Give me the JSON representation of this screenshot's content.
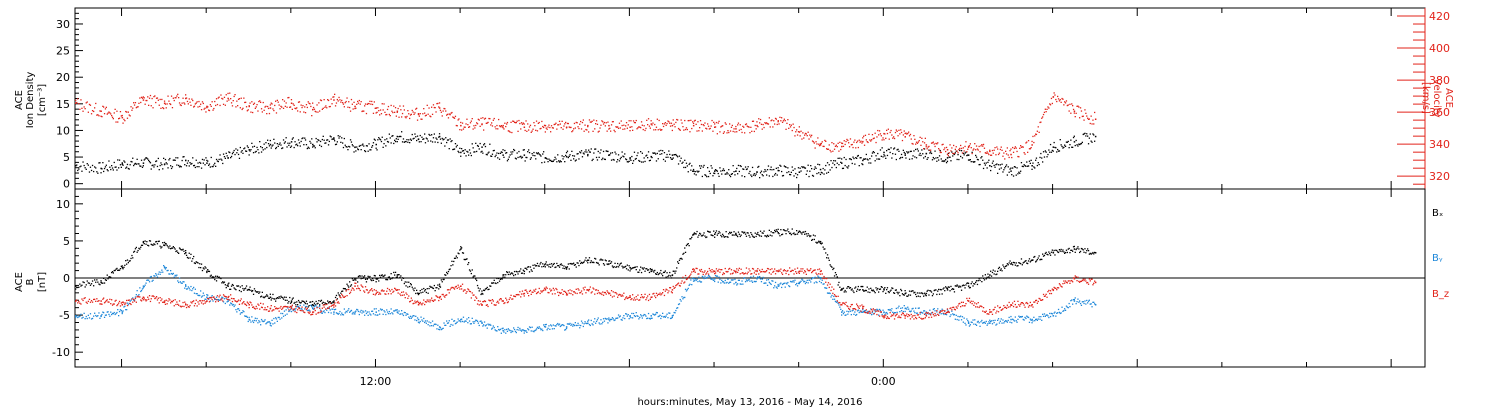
{
  "colors": {
    "black": "#000000",
    "red": "#e2231a",
    "blue": "#1f88d9"
  },
  "xlabel": "hours:minutes, May 13, 2016 - May 14, 2016",
  "x_tick_labels": [
    {
      "label": "12:00",
      "hour": 12
    },
    {
      "label": "0:00",
      "hour": 24
    }
  ],
  "chart_data": [
    {
      "type": "scatter",
      "panel": "plasma",
      "x_unit": "hours since May 13, 2016 00:00",
      "xlim": [
        4.9,
        36.8
      ],
      "left_axis": {
        "label_lines": [
          "ACE",
          "Ion Density",
          "[cm⁻³]"
        ],
        "ylim": [
          -1,
          33
        ],
        "ticks": [
          0,
          5,
          10,
          15,
          20,
          25,
          30
        ],
        "color": "#000000"
      },
      "right_axis": {
        "label_lines": [
          "ACE",
          "Velocity",
          "[km/s]"
        ],
        "ylim": [
          312,
          425
        ],
        "ticks": [
          320,
          340,
          360,
          380,
          400,
          420
        ],
        "color": "#e2231a"
      },
      "series": [
        {
          "axis": "left",
          "color": "#000000",
          "x": [
            4.9,
            5.5,
            6,
            6.5,
            7,
            7.5,
            8,
            8.5,
            9,
            9.5,
            10,
            10.5,
            11,
            11.5,
            12,
            12.5,
            13,
            13.5,
            14,
            14.5,
            15,
            15.5,
            16,
            16.5,
            17,
            17.5,
            18,
            18.5,
            19,
            19.5,
            20,
            20.5,
            21,
            21.5,
            22,
            22.5,
            23,
            23.5,
            24,
            24.5,
            25,
            25.5,
            26,
            26.5,
            27,
            27.5,
            28,
            28.5,
            29
          ],
          "y": [
            3.5,
            3,
            3.8,
            4,
            3.8,
            4.5,
            4,
            5,
            6.5,
            7.5,
            8,
            7.5,
            8.5,
            7,
            7.5,
            9,
            8.5,
            9,
            6,
            7,
            5.5,
            5.5,
            5,
            5.2,
            5.6,
            5.5,
            5,
            5.2,
            5.5,
            2.5,
            2.5,
            2.5,
            2.3,
            2.6,
            2.3,
            2.8,
            4,
            4.5,
            6,
            5.5,
            5.8,
            5,
            5.5,
            3.5,
            2.5,
            3.5,
            7,
            8,
            9
          ]
        },
        {
          "axis": "right",
          "color": "#e2231a",
          "x": [
            4.9,
            5.5,
            6,
            6.5,
            7,
            7.5,
            8,
            8.5,
            9,
            9.5,
            10,
            10.5,
            11,
            11.5,
            12,
            12.5,
            13,
            13.5,
            14,
            14.5,
            15,
            15.5,
            16,
            16.5,
            17,
            17.5,
            18,
            18.5,
            19,
            19.5,
            20,
            20.5,
            21,
            21.5,
            22,
            22.5,
            23,
            23.5,
            24,
            24.5,
            25,
            25.5,
            26,
            26.5,
            27,
            27.5,
            28,
            28.5,
            29
          ],
          "y": [
            366,
            361,
            357,
            368,
            366,
            369,
            364,
            369,
            364,
            363,
            366,
            362,
            368,
            364,
            363,
            361,
            359,
            363,
            352,
            353,
            352,
            351,
            352,
            351,
            352,
            352,
            351,
            353,
            352,
            352,
            351,
            350,
            352,
            355,
            348,
            340,
            339,
            342,
            347,
            345,
            340,
            337,
            339,
            336,
            334,
            340,
            370,
            361,
            356
          ]
        }
      ]
    },
    {
      "type": "scatter",
      "panel": "magnetic-field",
      "x_unit": "hours since May 13, 2016 00:00",
      "xlim": [
        4.9,
        36.8
      ],
      "ylabel_lines": [
        "ACE",
        "B",
        "[nT]"
      ],
      "ylim": [
        -12,
        12
      ],
      "ticks": [
        -10,
        -5,
        0,
        5,
        10
      ],
      "zero_line": true,
      "series": [
        {
          "name": "Bₓ",
          "color": "#000000",
          "x": [
            4.9,
            5.5,
            6,
            6.5,
            7,
            7.5,
            8,
            8.5,
            9,
            9.5,
            10,
            10.5,
            11,
            11.5,
            12,
            12.5,
            13,
            13.5,
            14,
            14.5,
            15,
            15.5,
            16,
            16.5,
            17,
            17.5,
            18,
            18.5,
            19,
            19.5,
            20,
            20.5,
            21,
            21.5,
            22,
            22.5,
            23,
            23.5,
            24,
            24.5,
            25,
            25.5,
            26,
            26.5,
            27,
            27.5,
            28,
            28.5,
            29
          ],
          "y": [
            -1,
            -0.5,
            1.5,
            5,
            4.5,
            3.5,
            1,
            -1,
            -1.5,
            -2.5,
            -3,
            -3.5,
            -3,
            0,
            0,
            0.5,
            -2,
            -1,
            4,
            -2,
            0.5,
            1,
            2,
            1.5,
            2.5,
            2,
            1.5,
            1,
            0.5,
            6,
            6,
            6,
            6,
            6.2,
            6.4,
            5,
            -1.5,
            -1.5,
            -1.5,
            -2,
            -2,
            -1.5,
            -1,
            0.5,
            2,
            2.5,
            3.5,
            4,
            3.5
          ]
        },
        {
          "name": "Bᵧ",
          "color": "#1f88d9",
          "x": [
            4.9,
            5.5,
            6,
            6.5,
            7,
            7.5,
            8,
            8.5,
            9,
            9.5,
            10,
            10.5,
            11,
            11.5,
            12,
            12.5,
            13,
            13.5,
            14,
            14.5,
            15,
            15.5,
            16,
            16.5,
            17,
            17.5,
            18,
            18.5,
            19,
            19.5,
            20,
            20.5,
            21,
            21.5,
            22,
            22.5,
            23,
            23.5,
            24,
            24.5,
            25,
            25.5,
            26,
            26.5,
            27,
            27.5,
            28,
            28.5,
            29
          ],
          "y": [
            -5,
            -5,
            -4.5,
            -1,
            1.5,
            -1,
            -2.5,
            -3,
            -5.5,
            -6,
            -4,
            -4,
            -4.5,
            -4.5,
            -4.5,
            -4.5,
            -5.5,
            -6.5,
            -5.5,
            -6,
            -7,
            -7,
            -6.5,
            -6.5,
            -6,
            -5.5,
            -5,
            -5,
            -5,
            0,
            0,
            -0.5,
            0,
            -1,
            -0.5,
            0,
            -4.5,
            -4.5,
            -4.5,
            -4,
            -4.5,
            -4.5,
            -6,
            -6,
            -5.5,
            -5.5,
            -5,
            -3,
            -3.5
          ]
        },
        {
          "name": "B_z",
          "color": "#e2231a",
          "x": [
            4.9,
            5.5,
            6,
            6.5,
            7,
            7.5,
            8,
            8.5,
            9,
            9.5,
            10,
            10.5,
            11,
            11.5,
            12,
            12.5,
            13,
            13.5,
            14,
            14.5,
            15,
            15.5,
            16,
            16.5,
            17,
            17.5,
            18,
            18.5,
            19,
            19.5,
            20,
            20.5,
            21,
            21.5,
            22,
            22.5,
            23,
            23.5,
            24,
            24.5,
            25,
            25.5,
            26,
            26.5,
            27,
            27.5,
            28,
            28.5,
            29
          ],
          "y": [
            -3,
            -3,
            -3.5,
            -2.5,
            -3,
            -3.5,
            -3,
            -2.5,
            -3.5,
            -4,
            -4,
            -4.5,
            -3.5,
            -1,
            -2,
            -1.5,
            -3.5,
            -2.5,
            -1,
            -3.5,
            -3,
            -2,
            -1.5,
            -2,
            -1.5,
            -2,
            -2.5,
            -2.5,
            -1.5,
            1,
            1,
            1,
            1,
            1,
            1,
            1,
            -3.5,
            -4,
            -5,
            -5,
            -5,
            -4.5,
            -3,
            -4.5,
            -3.5,
            -3.5,
            -1.5,
            0,
            -0.5
          ]
        }
      ],
      "legend": [
        {
          "text": "Bₓ",
          "color": "#000000"
        },
        {
          "text": "Bᵧ",
          "color": "#1f88d9"
        },
        {
          "text": "B_z",
          "color": "#e2231a"
        }
      ]
    }
  ]
}
